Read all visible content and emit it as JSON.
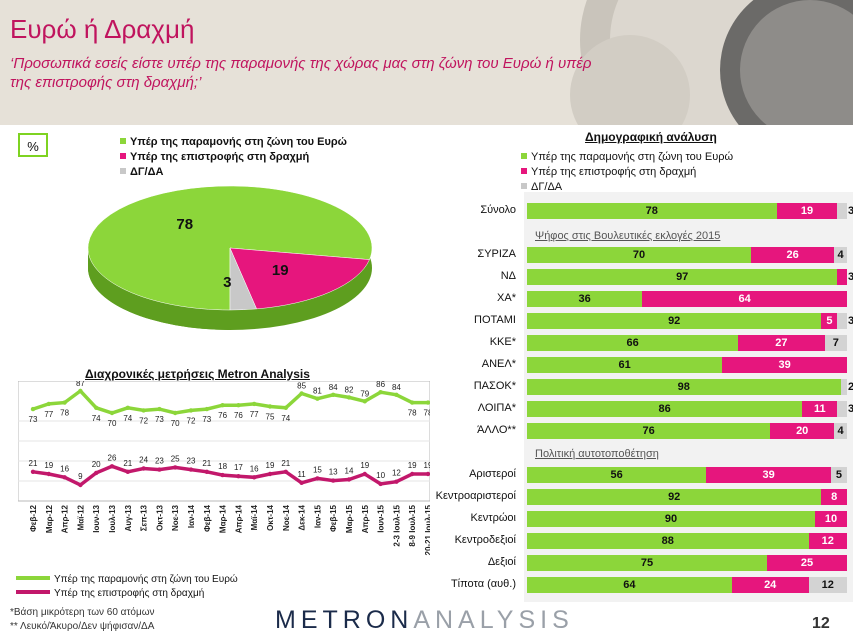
{
  "header": {
    "title": "Ευρώ ή Δραχμή",
    "subtitle": "‘Προσωπικά εσείς είστε υπέρ της παραμονής της χώρας μας στη ζώνη του Ευρώ ή υπέρ της επιστροφής στη δραχμή;’"
  },
  "pie_section": {
    "unit_badge": "%",
    "legend": [
      {
        "label": "Υπέρ της παραμονής στη ζώνη του Ευρώ",
        "color": "#8cd63a"
      },
      {
        "label": "Υπέρ της επιστροφής στη δραχμή",
        "color": "#e6167d"
      },
      {
        "label": "ΔΓ/ΔΑ",
        "color": "#c8c8c8"
      }
    ]
  },
  "trend_section": {
    "title": "Διαχρονικές μετρήσεις Metron Analysis",
    "legend": [
      {
        "label": "Υπέρ της παραμονής στη ζώνη του Ευρώ",
        "color": "#8cd63a"
      },
      {
        "label": "Υπέρ της επιστροφής στη δραχμή",
        "color": "#c2186b"
      }
    ]
  },
  "demo_section": {
    "title": "Δημογραφική ανάλυση",
    "legend": [
      {
        "label": "Υπέρ της παραμονής στη ζώνη του Ευρώ",
        "color": "#8cd63a"
      },
      {
        "label": "Υπέρ της επιστροφής στη δραχμή",
        "color": "#e6167d"
      },
      {
        "label": "ΔΓ/ΔΑ",
        "color": "#c8c8c8"
      }
    ],
    "section_vote": "Ψήφος στις Βουλευτικές εκλογές 2015",
    "section_political": "Πολιτική αυτοτοποθέτηση"
  },
  "footer": {
    "note1": "*Βάση μικρότερη των 60 ατόμων",
    "note2": "** Λευκό/Άκυρο/Δεν ψήφισαν/ΔΑ",
    "brand_part1": "METRON",
    "brand_part2": "ANALYSIS",
    "page_number": "12"
  },
  "chart_data": [
    {
      "type": "pie",
      "labels": [
        "Υπέρ της παραμονής στη ζώνη του Ευρώ",
        "Υπέρ της επιστροφής στη δραχμή",
        "ΔΓ/ΔΑ"
      ],
      "values": [
        78,
        19,
        3
      ],
      "colors": [
        "#8cd63a",
        "#e6167d",
        "#c8c8c8"
      ]
    },
    {
      "type": "line",
      "title": "Διαχρονικές μετρήσεις Metron Analysis",
      "categories": [
        "Φεβ-12",
        "Μαρ-12",
        "Απρ-12",
        "Μαϊ-12",
        "Ιουν-13",
        "Ιουλ-13",
        "Αυγ-13",
        "Σεπ-13",
        "Οκτ-13",
        "Νοε-13",
        "Ιαν-14",
        "Φεβ-14",
        "Μαρ-14",
        "Απρ-14",
        "Μαϊ-14",
        "Οκτ-14",
        "Νοε-14",
        "Δεκ-14",
        "Ιαν-15",
        "Φεβ-15",
        "Μαρ-15",
        "Απρ-15",
        "Ιουν-15",
        "2-3 Ιουλ-15",
        "8-9 Ιουλ-15",
        "20-21 Ιουλ-15"
      ],
      "series": [
        {
          "name": "Υπέρ της παραμονής στη ζώνη του Ευρώ",
          "values": [
            73,
            77,
            78,
            87,
            74,
            70,
            74,
            72,
            73,
            70,
            72,
            73,
            76,
            76,
            77,
            75,
            74,
            85,
            81,
            84,
            82,
            79,
            86,
            84,
            78,
            78
          ],
          "color": "#8cd63a"
        },
        {
          "name": "Υπέρ της επιστροφής στη δραχμή",
          "values": [
            21,
            19,
            16,
            9,
            20,
            26,
            21,
            24,
            23,
            25,
            23,
            21,
            18,
            17,
            16,
            19,
            21,
            11,
            15,
            13,
            14,
            19,
            10,
            12,
            19,
            19
          ],
          "color": "#c2186b"
        }
      ]
    },
    {
      "type": "bar",
      "orientation": "horizontal",
      "stacked": true,
      "title": "Δημογραφική ανάλυση",
      "categories": [
        "Σύνολο",
        "ΣΥΡΙΖΑ",
        "ΝΔ",
        "ΧΑ*",
        "ΠΟΤΑΜΙ",
        "ΚΚΕ*",
        "ΑΝΕΛ*",
        "ΠΑΣΟΚ*",
        "ΛΟΙΠΑ*",
        "ΆΛΛΟ**",
        "Αριστεροί",
        "Κεντροαριστεροί",
        "Κεντρώοι",
        "Κεντροδεξιοί",
        "Δεξιοί",
        "Τίποτα (αυθ.)"
      ],
      "series": [
        {
          "name": "Υπέρ της παραμονής στη ζώνη του Ευρώ",
          "values": [
            78,
            70,
            97,
            36,
            92,
            66,
            61,
            98,
            86,
            76,
            56,
            92,
            90,
            88,
            75,
            64
          ],
          "color": "#8cd63a"
        },
        {
          "name": "Υπέρ της επιστροφής στη δραχμή",
          "values": [
            19,
            26,
            3,
            64,
            5,
            27,
            39,
            null,
            11,
            20,
            39,
            8,
            10,
            12,
            25,
            24
          ],
          "color": "#e6167d"
        },
        {
          "name": "ΔΓ/ΔΑ",
          "values": [
            3,
            4,
            null,
            null,
            3,
            7,
            null,
            2,
            3,
            4,
            5,
            null,
            null,
            null,
            null,
            12
          ],
          "color": "#c8c8c8"
        }
      ]
    }
  ]
}
